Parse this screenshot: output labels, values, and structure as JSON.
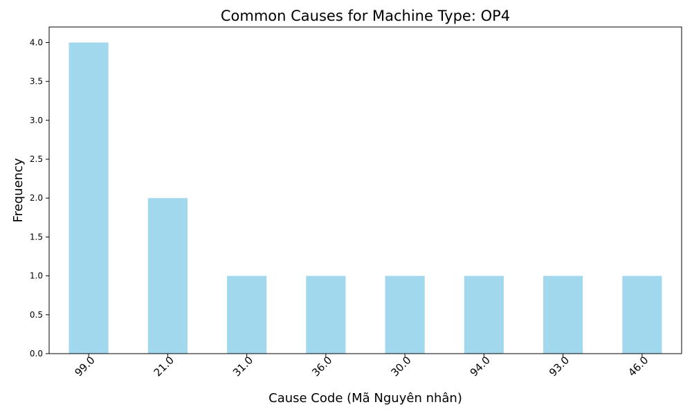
{
  "chart_data": {
    "type": "bar",
    "title": "Common Causes for Machine Type: OP4",
    "xlabel": "Cause Code (Mã Nguyên nhân)",
    "ylabel": "Frequency",
    "categories": [
      "99.0",
      "21.0",
      "31.0",
      "36.0",
      "30.0",
      "94.0",
      "93.0",
      "46.0"
    ],
    "values": [
      4,
      2,
      1,
      1,
      1,
      1,
      1,
      1
    ],
    "ylim": [
      0,
      4.2
    ],
    "yticks": [
      "0.0",
      "0.5",
      "1.0",
      "1.5",
      "2.0",
      "2.5",
      "3.0",
      "3.5",
      "4.0"
    ],
    "grid": false,
    "legend": "none",
    "bar_color": "#a1d8ed"
  }
}
